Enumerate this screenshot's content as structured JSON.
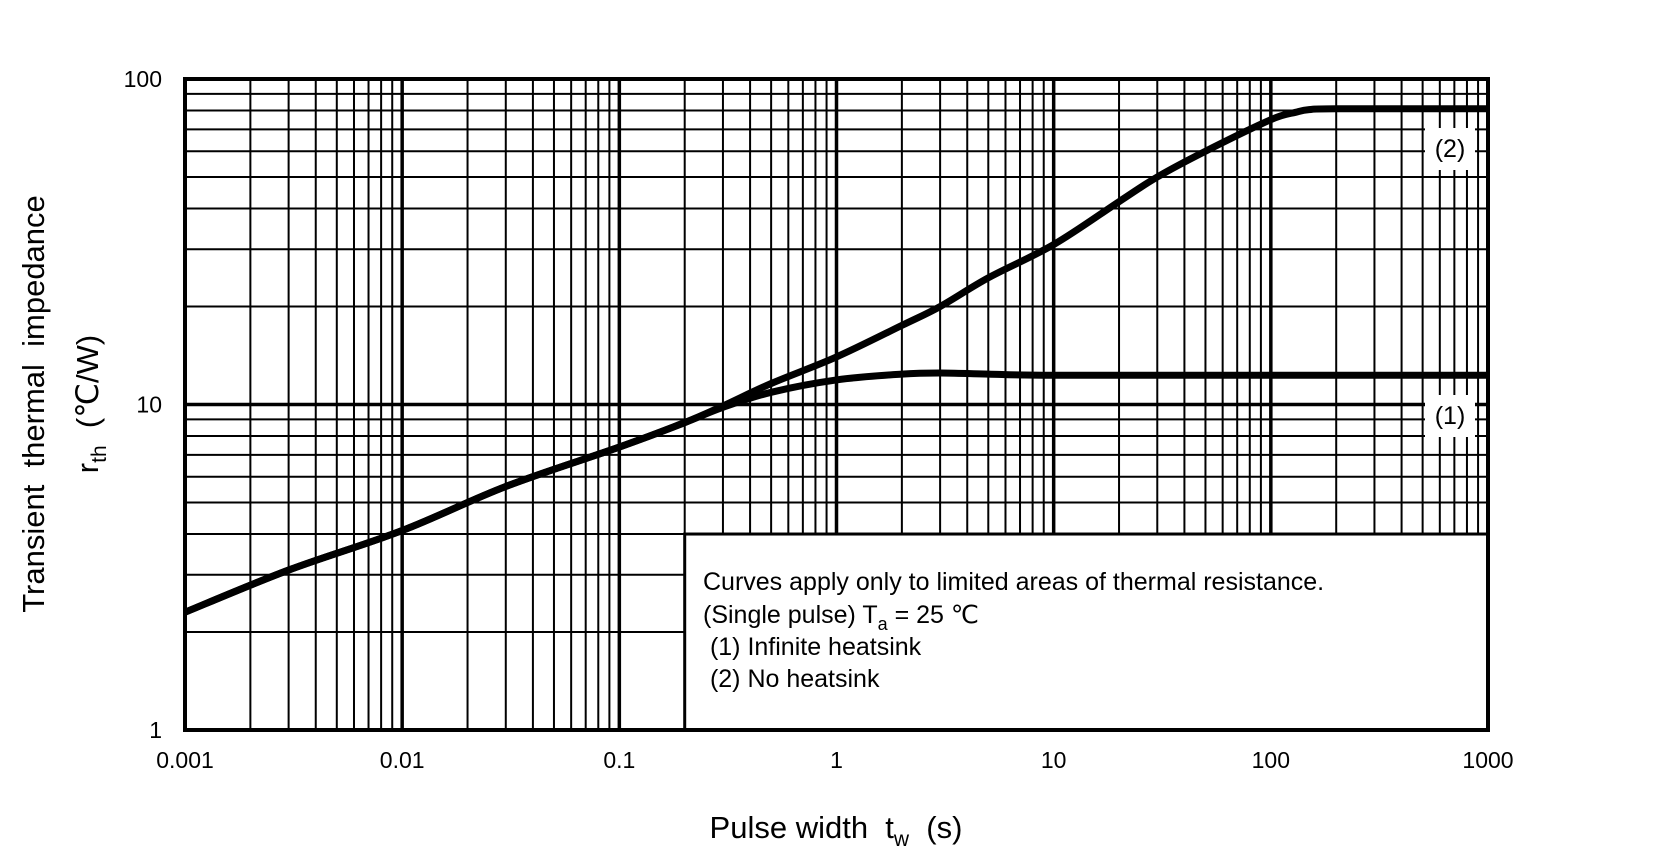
{
  "chart_data": {
    "type": "line",
    "xlabel": {
      "main": "Pulse width  t",
      "sub": "w",
      "unit": "  (s)"
    },
    "ylabel": {
      "line1": "Transient  thermal  impedance",
      "line2_main": "r",
      "line2_sub": "th",
      "line2_unit": "  (℃/W)"
    },
    "x_scale": "log",
    "y_scale": "log",
    "xlim": [
      0.001,
      1000
    ],
    "ylim": [
      1,
      100
    ],
    "grid": true,
    "x_ticks": [
      "0.001",
      "0.01",
      "0.1",
      "1",
      "10",
      "100",
      "1000"
    ],
    "y_ticks": [
      "1",
      "10",
      "100"
    ],
    "series": [
      {
        "name": "(1)",
        "x": [
          0.001,
          0.003,
          0.01,
          0.03,
          0.1,
          0.2,
          0.3,
          0.5,
          1,
          2,
          3,
          5,
          10,
          100,
          1000
        ],
        "y": [
          2.3,
          3.1,
          4.1,
          5.6,
          7.4,
          8.8,
          9.8,
          10.9,
          11.9,
          12.4,
          12.5,
          12.4,
          12.3,
          12.3,
          12.3
        ]
      },
      {
        "name": "(2)",
        "x": [
          0.001,
          0.003,
          0.01,
          0.03,
          0.1,
          0.2,
          0.3,
          0.5,
          1,
          2,
          3,
          5,
          10,
          20,
          30,
          50,
          100,
          130,
          150,
          200,
          1000
        ],
        "y": [
          2.3,
          3.1,
          4.1,
          5.6,
          7.4,
          8.8,
          9.9,
          11.6,
          14,
          17.5,
          20,
          24.5,
          31,
          42,
          50,
          60,
          75,
          79,
          80.5,
          81,
          81
        ]
      }
    ],
    "legend": {
      "line1": "Curves apply only to limited areas of thermal resistance.",
      "line2_pre": "(Single pulse) T",
      "line2_sub": "a",
      "line2_post": " = 25 ℃",
      "line3": " (1) Infinite heatsink",
      "line4": " (2) No heatsink"
    },
    "curve_labels": [
      "(1)",
      "(2)"
    ],
    "line_color": "#000000"
  }
}
